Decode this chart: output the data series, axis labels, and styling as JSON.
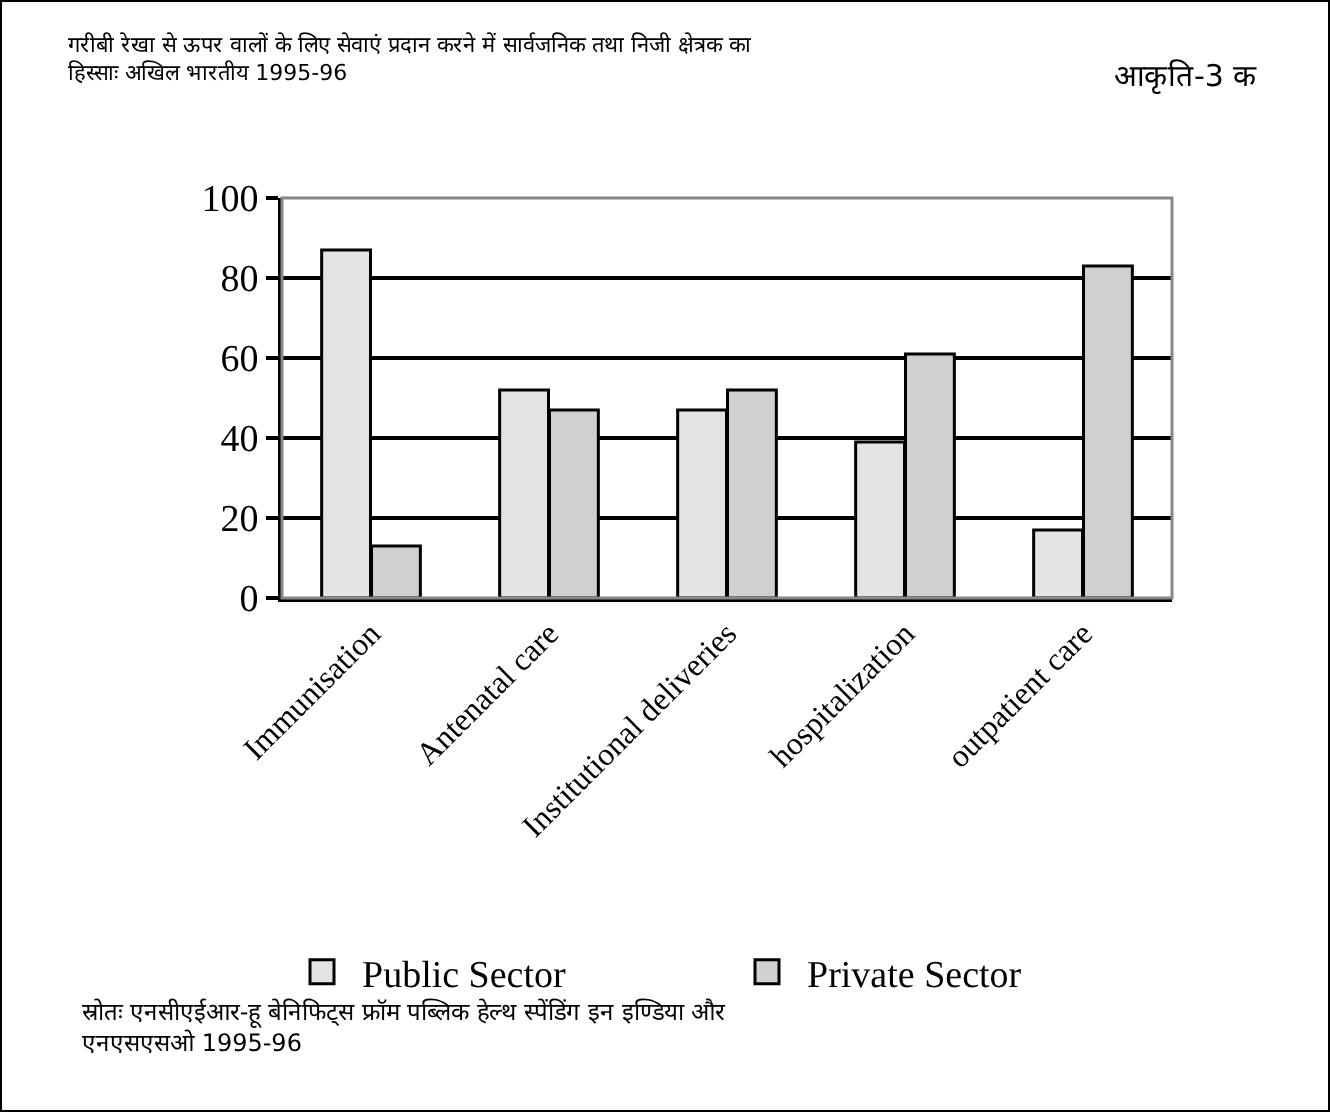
{
  "chart_data": {
    "type": "bar",
    "title": "गरीबी रेखा से ऊपर वालों के लिए सेवाएं प्रदान करने में सार्वजनिक तथा निजी क्षेत्रक का\nहिस्साः अखिल भारतीय 1995-96",
    "categories": [
      "Immunisation",
      "Antenatal care",
      "Institutional deliveries",
      "hospitalization",
      "outpatient care"
    ],
    "series": [
      {
        "name": "Public Sector",
        "color": "#e3e3e3",
        "values": [
          87,
          52,
          47,
          39,
          17
        ]
      },
      {
        "name": "Private Sector",
        "color": "#d0d0d0",
        "values": [
          13,
          47,
          52,
          61,
          83
        ]
      }
    ],
    "ylim": [
      0,
      100
    ],
    "yticks": [
      0,
      20,
      40,
      60,
      80,
      100
    ],
    "grid": "y",
    "legend": "bottom",
    "annotations": [
      "आकृति-3 क",
      "स्रोतः एनसीएईआर-हू बेनिफिट्स फ्रॉम पब्लिक हेल्थ स्पेंडिंग इन इण्डिया और\nएनएसएसओ 1995-96"
    ]
  }
}
